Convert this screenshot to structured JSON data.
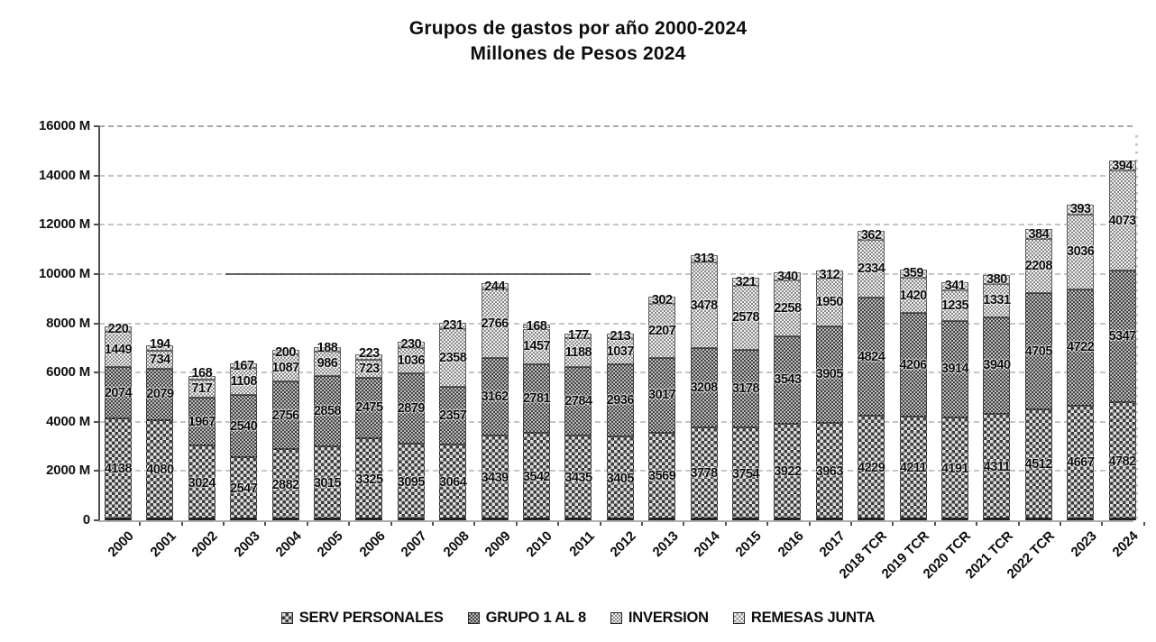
{
  "title": {
    "line1": "Grupos de gastos por año 2000-2024",
    "line2": "Millones de Pesos 2024"
  },
  "chart_data": {
    "type": "bar",
    "stacked": true,
    "title": "Grupos de gastos por año 2000-2024",
    "subtitle": "Millones de Pesos 2024",
    "categories": [
      "2000",
      "2001",
      "2002",
      "2003",
      "2004",
      "2005",
      "2006",
      "2007",
      "2008",
      "2009",
      "2010",
      "2011",
      "2012",
      "2013",
      "2014",
      "2015",
      "2016",
      "2017",
      "2018 TCR",
      "2019 TCR",
      "2020 TCR",
      "2021 TCR",
      "2022 TCR",
      "2023",
      "2024"
    ],
    "series": [
      {
        "name": "SERV PERSONALES",
        "values": [
          4138,
          4080,
          3024,
          2547,
          2882,
          3015,
          3325,
          3095,
          3064,
          3439,
          3542,
          3435,
          3405,
          3569,
          3778,
          3754,
          3922,
          3963,
          4229,
          4211,
          4191,
          4311,
          4512,
          4667,
          4782
        ]
      },
      {
        "name": "GRUPO 1 AL 8",
        "values": [
          2074,
          2079,
          1967,
          2540,
          2756,
          2858,
          2475,
          2879,
          2357,
          3162,
          2781,
          2784,
          2936,
          3017,
          3208,
          3178,
          3543,
          3905,
          4824,
          4206,
          3914,
          3940,
          4705,
          4722,
          5347
        ]
      },
      {
        "name": "INVERSION",
        "values": [
          1449,
          734,
          717,
          1108,
          1087,
          986,
          723,
          1036,
          2358,
          2766,
          1457,
          1188,
          1037,
          2207,
          3478,
          2578,
          2258,
          1950,
          2334,
          1420,
          1235,
          1331,
          2208,
          3036,
          4073
        ]
      },
      {
        "name": "REMESAS JUNTA",
        "values": [
          220,
          194,
          168,
          167,
          200,
          188,
          223,
          230,
          231,
          244,
          168,
          177,
          213,
          302,
          313,
          321,
          340,
          312,
          362,
          359,
          341,
          380,
          384,
          393,
          394
        ]
      }
    ],
    "ylim": [
      0,
      16000
    ],
    "ytick_step": 2000,
    "yticklabels": [
      "0",
      "2000 M",
      "4000 M",
      "6000 M",
      "8000 M",
      "10000 M",
      "12000 M",
      "14000 M",
      "16000 M"
    ],
    "xlabel": "",
    "ylabel": "",
    "grid": "dashed-horizontal",
    "legend_position": "bottom",
    "monochrome": true,
    "bar_value_labels": true,
    "colors": {
      "text": "#0c0c0c",
      "grid": "#8d8d8d",
      "pattern_dark": "#3c3c3c",
      "pattern_light": "#9d9d9d"
    }
  }
}
